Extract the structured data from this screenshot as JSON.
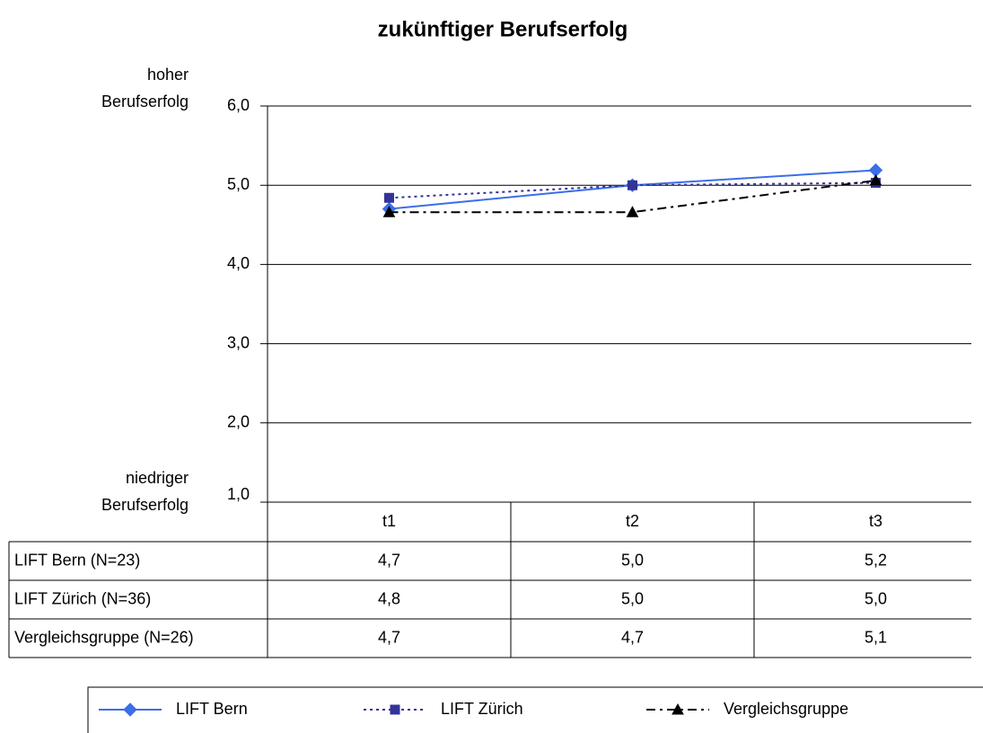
{
  "chart_data": {
    "type": "line",
    "title": "zukünftiger Berufserfolg",
    "y_top_label": [
      "hoher",
      "Berufserfolg"
    ],
    "y_bottom_label": [
      "niedriger",
      "Berufserfolg"
    ],
    "categories": [
      "t1",
      "t2",
      "t3"
    ],
    "ylim": [
      1,
      6
    ],
    "yticks": [
      {
        "value": 1,
        "label": "1,0"
      },
      {
        "value": 2,
        "label": "2,0"
      },
      {
        "value": 3,
        "label": "3,0"
      },
      {
        "value": 4,
        "label": "4,0"
      },
      {
        "value": 5,
        "label": "5,0"
      },
      {
        "value": 6,
        "label": "6,0"
      }
    ],
    "grid": true,
    "series": [
      {
        "name": "LIFT Bern",
        "table_label": "LIFT Bern (N=23)",
        "color": "#3b6ee8",
        "dash": "solid",
        "marker": "diamond",
        "values": [
          4.7,
          5.0,
          5.19
        ],
        "value_labels": [
          "4,7",
          "5,0",
          "5,2"
        ]
      },
      {
        "name": "LIFT Zürich",
        "table_label": "LIFT Zürich (N=36)",
        "color": "#333399",
        "dash": "dotted",
        "marker": "square",
        "values": [
          4.84,
          5.0,
          5.03
        ],
        "value_labels": [
          "4,8",
          "5,0",
          "5,0"
        ]
      },
      {
        "name": "Vergleichsgruppe",
        "table_label": "Vergleichsgruppe (N=26)",
        "color": "#000000",
        "dash": "dashdot",
        "marker": "triangle",
        "values": [
          4.66,
          4.66,
          5.06
        ],
        "value_labels": [
          "4,7",
          "4,7",
          "5,1"
        ]
      }
    ]
  }
}
